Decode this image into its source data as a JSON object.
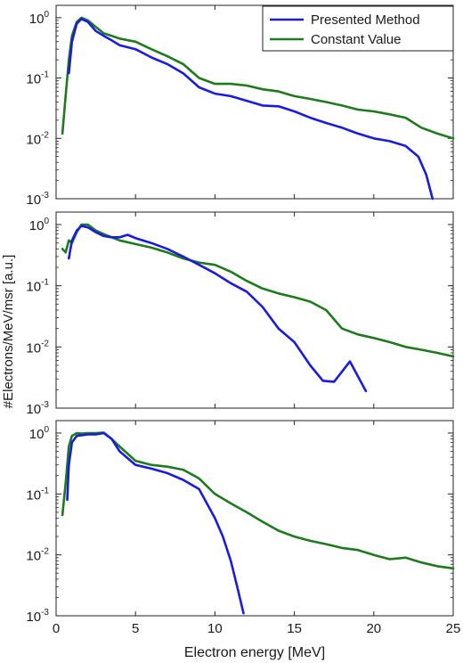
{
  "figure": {
    "ylabel": "#Electrons/MeV/msr [a.u.]",
    "xlabel": "Electron energy [MeV]",
    "x_ticks": [
      "0",
      "5",
      "10",
      "15",
      "20",
      "25"
    ],
    "y_ticks": [
      {
        "base": "10",
        "exp": "0"
      },
      {
        "base": "10",
        "exp": "-1"
      },
      {
        "base": "10",
        "exp": "-2"
      },
      {
        "base": "10",
        "exp": "-3"
      }
    ],
    "colors": {
      "presented": "#1a1ae0",
      "constant": "#1f7a1f",
      "axis": "#222222"
    }
  },
  "chart_data": [
    {
      "type": "line",
      "yscale": "log",
      "xlim": [
        0,
        25
      ],
      "ylim": [
        0.001,
        1.6
      ],
      "legend": {
        "location": "top-right",
        "entries": [
          "Presented Method",
          "Constant Value"
        ]
      },
      "series": [
        {
          "name": "Presented Method",
          "x": [
            0.8,
            1.0,
            1.3,
            1.6,
            2.0,
            2.5,
            3.0,
            3.5,
            4.0,
            5.0,
            6.0,
            7.0,
            8.0,
            9.0,
            10.0,
            11.0,
            12.0,
            13.0,
            14.0,
            15.0,
            16.0,
            17.0,
            18.0,
            19.0,
            20.0,
            21.0,
            22.0,
            22.8,
            23.3,
            23.7
          ],
          "y": [
            0.12,
            0.4,
            0.8,
            0.95,
            0.85,
            0.6,
            0.5,
            0.42,
            0.35,
            0.3,
            0.22,
            0.17,
            0.12,
            0.07,
            0.055,
            0.05,
            0.042,
            0.035,
            0.034,
            0.028,
            0.022,
            0.018,
            0.015,
            0.012,
            0.01,
            0.009,
            0.0075,
            0.005,
            0.0025,
            0.001
          ]
        },
        {
          "name": "Constant Value",
          "x": [
            0.4,
            0.6,
            0.8,
            1.0,
            1.3,
            1.6,
            2.0,
            2.5,
            3.0,
            3.5,
            4.0,
            5.0,
            6.0,
            7.0,
            8.0,
            9.0,
            10.0,
            11.0,
            12.0,
            13.0,
            14.0,
            15.0,
            16.0,
            17.0,
            18.0,
            19.0,
            20.0,
            21.0,
            22.0,
            23.0,
            24.0,
            25.0
          ],
          "y": [
            0.012,
            0.05,
            0.2,
            0.5,
            0.85,
            1.0,
            0.9,
            0.7,
            0.55,
            0.5,
            0.45,
            0.4,
            0.3,
            0.23,
            0.17,
            0.1,
            0.08,
            0.08,
            0.075,
            0.065,
            0.06,
            0.05,
            0.045,
            0.04,
            0.035,
            0.03,
            0.028,
            0.025,
            0.022,
            0.015,
            0.012,
            0.01
          ]
        }
      ]
    },
    {
      "type": "line",
      "yscale": "log",
      "xlim": [
        0,
        25
      ],
      "ylim": [
        0.001,
        1.6
      ],
      "series": [
        {
          "name": "Presented Method",
          "x": [
            0.8,
            1.0,
            1.3,
            1.6,
            2.0,
            2.5,
            3.0,
            3.5,
            4.0,
            4.5,
            5.0,
            6.0,
            7.0,
            8.0,
            9.0,
            10.0,
            11.0,
            12.0,
            13.0,
            14.0,
            15.0,
            16.0,
            16.8,
            17.5,
            18.5,
            19.5
          ],
          "y": [
            0.28,
            0.55,
            0.8,
            0.95,
            0.9,
            0.75,
            0.65,
            0.62,
            0.62,
            0.68,
            0.6,
            0.5,
            0.4,
            0.3,
            0.22,
            0.16,
            0.11,
            0.08,
            0.045,
            0.02,
            0.012,
            0.005,
            0.0028,
            0.0027,
            0.0058,
            0.0019
          ]
        },
        {
          "name": "Constant Value",
          "x": [
            0.4,
            0.6,
            0.8,
            1.0,
            1.3,
            1.6,
            2.0,
            2.5,
            3.0,
            4.0,
            5.0,
            6.0,
            7.0,
            8.0,
            9.0,
            10.0,
            11.0,
            12.0,
            13.0,
            14.0,
            15.0,
            16.0,
            17.0,
            18.0,
            19.0,
            20.0,
            21.0,
            22.0,
            23.0,
            24.0,
            25.0
          ],
          "y": [
            0.4,
            0.35,
            0.55,
            0.5,
            0.75,
            1.0,
            1.0,
            0.8,
            0.7,
            0.55,
            0.48,
            0.42,
            0.35,
            0.28,
            0.24,
            0.22,
            0.17,
            0.12,
            0.09,
            0.075,
            0.065,
            0.055,
            0.04,
            0.02,
            0.016,
            0.014,
            0.012,
            0.01,
            0.009,
            0.008,
            0.007
          ]
        }
      ]
    },
    {
      "type": "line",
      "yscale": "log",
      "xlim": [
        0,
        25
      ],
      "ylim": [
        0.001,
        1.6
      ],
      "series": [
        {
          "name": "Presented Method",
          "x": [
            0.7,
            0.8,
            1.0,
            1.3,
            1.6,
            2.0,
            2.5,
            3.0,
            3.5,
            4.0,
            5.0,
            6.0,
            7.0,
            8.0,
            9.0,
            10.0,
            10.5,
            11.0,
            11.4,
            11.8
          ],
          "y": [
            0.08,
            0.3,
            0.7,
            0.9,
            0.92,
            0.95,
            0.95,
            1.0,
            0.8,
            0.5,
            0.3,
            0.26,
            0.22,
            0.17,
            0.12,
            0.04,
            0.02,
            0.008,
            0.003,
            0.0011
          ]
        },
        {
          "name": "Constant Value",
          "x": [
            0.4,
            0.6,
            0.8,
            1.0,
            1.3,
            1.6,
            2.0,
            2.5,
            3.0,
            3.5,
            4.0,
            5.0,
            6.0,
            7.0,
            8.0,
            9.0,
            10.0,
            11.0,
            12.0,
            13.0,
            14.0,
            15.0,
            16.0,
            17.0,
            18.0,
            19.0,
            20.0,
            21.0,
            22.0,
            23.0,
            24.0,
            25.0
          ],
          "y": [
            0.045,
            0.15,
            0.6,
            0.9,
            1.0,
            0.98,
            1.0,
            1.0,
            1.02,
            0.8,
            0.6,
            0.35,
            0.3,
            0.28,
            0.25,
            0.18,
            0.1,
            0.07,
            0.05,
            0.035,
            0.025,
            0.02,
            0.017,
            0.015,
            0.013,
            0.012,
            0.01,
            0.0085,
            0.009,
            0.0075,
            0.0065,
            0.006
          ]
        }
      ]
    }
  ]
}
